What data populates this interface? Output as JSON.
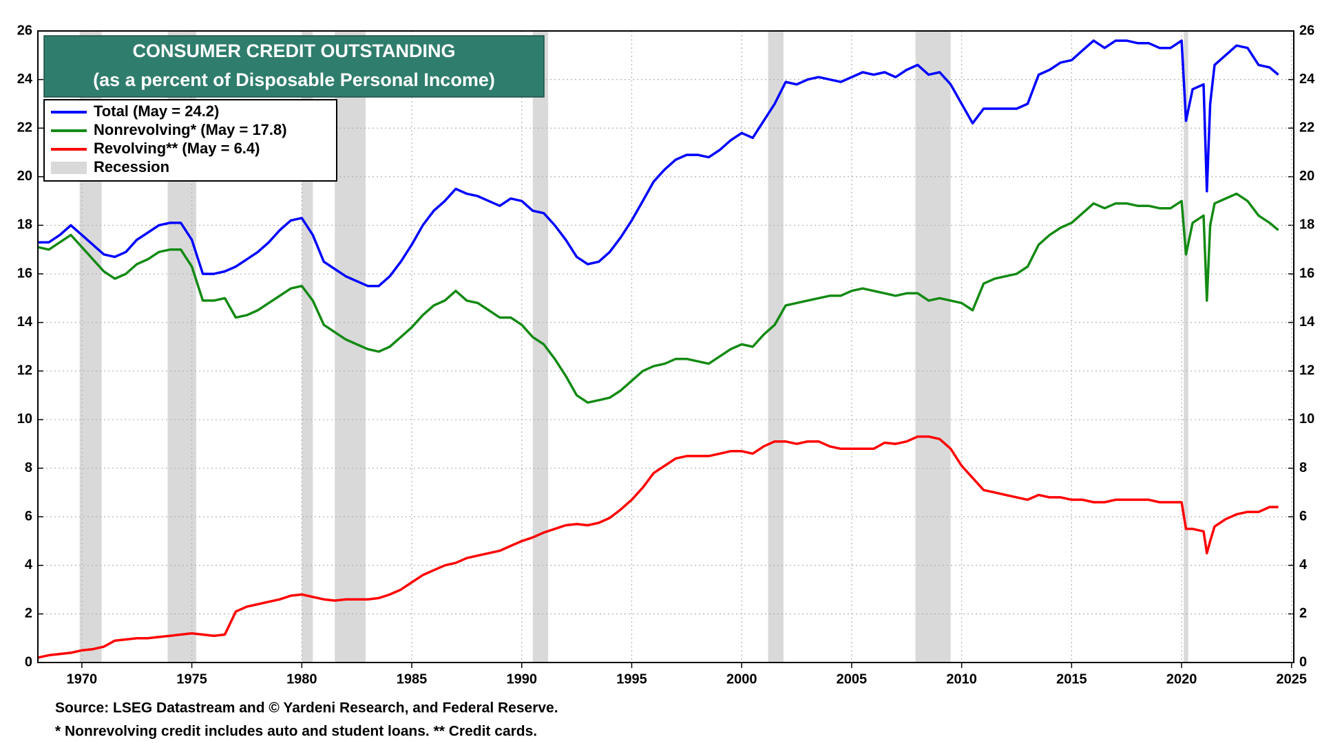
{
  "chart_data": {
    "type": "line",
    "title": "CONSUMER CREDIT OUTSTANDING",
    "subtitle": "(as a percent of Disposable Personal Income)",
    "notes": [
      "Source: LSEG Datastream and © Yardeni Research, and Federal Reserve.",
      "* Nonrevolving credit includes auto and student loans. ** Credit cards."
    ],
    "legend": "upper left",
    "grid": true,
    "xlim": [
      1968,
      2025.1
    ],
    "xticks": [
      1970,
      1975,
      1980,
      1985,
      1990,
      1995,
      2000,
      2005,
      2010,
      2015,
      2020,
      2025
    ],
    "ylim": [
      0,
      26
    ],
    "yticks": [
      0,
      2,
      4,
      6,
      8,
      10,
      12,
      14,
      16,
      18,
      20,
      22,
      24,
      26
    ],
    "recession_label": "Recession",
    "recession_color": "#d9d9d9",
    "recessions": [
      [
        1969.9,
        1970.9
      ],
      [
        1973.9,
        1975.2
      ],
      [
        1980.0,
        1980.5
      ],
      [
        1981.5,
        1982.9
      ],
      [
        1990.5,
        1991.2
      ],
      [
        2001.2,
        2001.9
      ],
      [
        2007.9,
        2009.5
      ],
      [
        2020.1,
        2020.3
      ]
    ],
    "x": [
      1968.0,
      1968.5,
      1969.0,
      1969.5,
      1970.0,
      1970.5,
      1971.0,
      1971.5,
      1972.0,
      1972.5,
      1973.0,
      1973.5,
      1974.0,
      1974.5,
      1975.0,
      1975.5,
      1976.0,
      1976.5,
      1977.0,
      1977.5,
      1978.0,
      1978.5,
      1979.0,
      1979.5,
      1980.0,
      1980.5,
      1981.0,
      1981.5,
      1982.0,
      1982.5,
      1983.0,
      1983.5,
      1984.0,
      1984.5,
      1985.0,
      1985.5,
      1986.0,
      1986.5,
      1987.0,
      1987.5,
      1988.0,
      1988.5,
      1989.0,
      1989.5,
      1990.0,
      1990.5,
      1991.0,
      1991.5,
      1992.0,
      1992.5,
      1993.0,
      1993.5,
      1994.0,
      1994.5,
      1995.0,
      1995.5,
      1996.0,
      1996.5,
      1997.0,
      1997.5,
      1998.0,
      1998.5,
      1999.0,
      1999.5,
      2000.0,
      2000.5,
      2001.0,
      2001.5,
      2002.0,
      2002.5,
      2003.0,
      2003.5,
      2004.0,
      2004.5,
      2005.0,
      2005.5,
      2006.0,
      2006.5,
      2007.0,
      2007.5,
      2008.0,
      2008.5,
      2009.0,
      2009.5,
      2010.0,
      2010.5,
      2011.0,
      2011.5,
      2012.0,
      2012.5,
      2013.0,
      2013.5,
      2014.0,
      2014.5,
      2015.0,
      2015.5,
      2016.0,
      2016.5,
      2017.0,
      2017.5,
      2018.0,
      2018.5,
      2019.0,
      2019.5,
      2020.0,
      2020.2,
      2020.5,
      2021.0,
      2021.15,
      2021.3,
      2021.5,
      2022.0,
      2022.5,
      2023.0,
      2023.5,
      2024.0,
      2024.4
    ],
    "series": [
      {
        "name": "Total  (May = 24.2)",
        "color": "#0000ff",
        "values": [
          17.3,
          17.3,
          17.6,
          18.0,
          17.6,
          17.2,
          16.8,
          16.7,
          16.9,
          17.4,
          17.7,
          18.0,
          18.1,
          18.1,
          17.4,
          16.0,
          16.0,
          16.1,
          16.3,
          16.6,
          16.9,
          17.3,
          17.8,
          18.2,
          18.3,
          17.6,
          16.5,
          16.2,
          15.9,
          15.7,
          15.5,
          15.5,
          15.9,
          16.5,
          17.2,
          18.0,
          18.6,
          19.0,
          19.5,
          19.3,
          19.2,
          19.0,
          18.8,
          19.1,
          19.0,
          18.6,
          18.5,
          18.0,
          17.4,
          16.7,
          16.4,
          16.5,
          16.9,
          17.5,
          18.2,
          19.0,
          19.8,
          20.3,
          20.7,
          20.9,
          20.9,
          20.8,
          21.1,
          21.5,
          21.8,
          21.6,
          22.3,
          23.0,
          23.9,
          23.8,
          24.0,
          24.1,
          24.0,
          23.9,
          24.1,
          24.3,
          24.2,
          24.3,
          24.1,
          24.4,
          24.6,
          24.2,
          24.3,
          23.8,
          23.0,
          22.2,
          22.8,
          22.8,
          22.8,
          22.8,
          23.0,
          24.2,
          24.4,
          24.7,
          24.8,
          25.2,
          25.6,
          25.3,
          25.6,
          25.6,
          25.5,
          25.5,
          25.3,
          25.3,
          25.6,
          22.3,
          23.6,
          23.8,
          19.4,
          23.0,
          24.6,
          25.0,
          25.4,
          25.3,
          24.6,
          24.5,
          24.2
        ]
      },
      {
        "name": "Nonrevolving* (May = 17.8)",
        "color": "#138a13",
        "values": [
          17.1,
          17.0,
          17.3,
          17.6,
          17.1,
          16.6,
          16.1,
          15.8,
          16.0,
          16.4,
          16.6,
          16.9,
          17.0,
          17.0,
          16.3,
          14.9,
          14.9,
          15.0,
          14.2,
          14.3,
          14.5,
          14.8,
          15.1,
          15.4,
          15.5,
          14.9,
          13.9,
          13.6,
          13.3,
          13.1,
          12.9,
          12.8,
          13.0,
          13.4,
          13.8,
          14.3,
          14.7,
          14.9,
          15.3,
          14.9,
          14.8,
          14.5,
          14.2,
          14.2,
          13.9,
          13.4,
          13.1,
          12.5,
          11.8,
          11.0,
          10.7,
          10.8,
          10.9,
          11.2,
          11.6,
          12.0,
          12.2,
          12.3,
          12.5,
          12.5,
          12.4,
          12.3,
          12.6,
          12.9,
          13.1,
          13.0,
          13.5,
          13.9,
          14.7,
          14.8,
          14.9,
          15.0,
          15.1,
          15.1,
          15.3,
          15.4,
          15.3,
          15.2,
          15.1,
          15.2,
          15.2,
          14.9,
          15.0,
          14.9,
          14.8,
          14.5,
          15.6,
          15.8,
          15.9,
          16.0,
          16.3,
          17.2,
          17.6,
          17.9,
          18.1,
          18.5,
          18.9,
          18.7,
          18.9,
          18.9,
          18.8,
          18.8,
          18.7,
          18.7,
          19.0,
          16.8,
          18.1,
          18.4,
          14.9,
          18.0,
          18.9,
          19.1,
          19.3,
          19.0,
          18.4,
          18.1,
          17.8
        ]
      },
      {
        "name": "Revolving** (May = 6.4)",
        "color": "#ff0000",
        "values": [
          0.2,
          0.3,
          0.35,
          0.4,
          0.5,
          0.55,
          0.65,
          0.9,
          0.95,
          1.0,
          1.0,
          1.05,
          1.1,
          1.15,
          1.2,
          1.15,
          1.1,
          1.15,
          2.1,
          2.3,
          2.4,
          2.5,
          2.6,
          2.75,
          2.8,
          2.7,
          2.6,
          2.55,
          2.6,
          2.6,
          2.6,
          2.65,
          2.8,
          3.0,
          3.3,
          3.6,
          3.8,
          4.0,
          4.1,
          4.3,
          4.4,
          4.5,
          4.6,
          4.8,
          5.0,
          5.15,
          5.35,
          5.5,
          5.65,
          5.7,
          5.65,
          5.75,
          5.95,
          6.3,
          6.7,
          7.2,
          7.8,
          8.1,
          8.4,
          8.5,
          8.5,
          8.5,
          8.6,
          8.7,
          8.7,
          8.6,
          8.9,
          9.1,
          9.1,
          9.0,
          9.1,
          9.1,
          8.9,
          8.8,
          8.8,
          8.8,
          8.8,
          9.05,
          9.0,
          9.1,
          9.3,
          9.3,
          9.2,
          8.8,
          8.1,
          7.6,
          7.1,
          7.0,
          6.9,
          6.8,
          6.7,
          6.9,
          6.8,
          6.8,
          6.7,
          6.7,
          6.6,
          6.6,
          6.7,
          6.7,
          6.7,
          6.7,
          6.6,
          6.6,
          6.6,
          5.5,
          5.5,
          5.4,
          4.5,
          5.0,
          5.6,
          5.9,
          6.1,
          6.2,
          6.2,
          6.4,
          6.4
        ]
      }
    ]
  }
}
